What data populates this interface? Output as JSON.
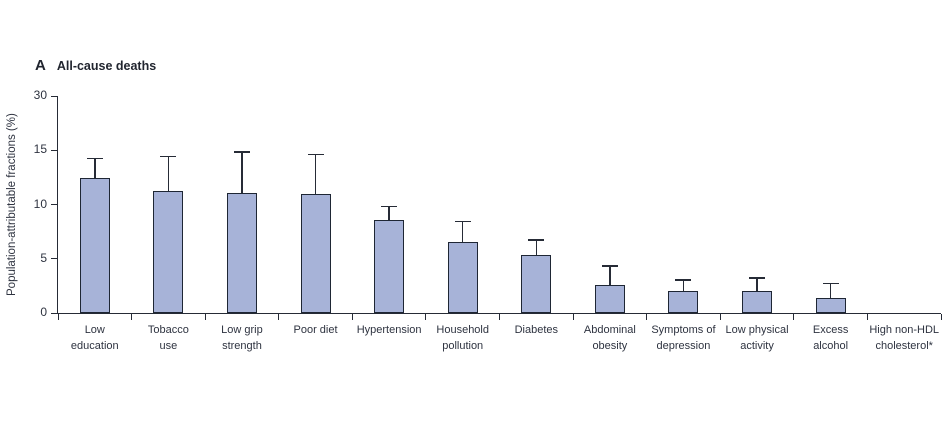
{
  "figure": {
    "panel_label": "A",
    "title": "All-cause deaths",
    "ylabel": "Population-attributable fractions (%)"
  },
  "chart_data": {
    "type": "bar",
    "title": "All-cause deaths",
    "xlabel": "",
    "ylabel": "Population-attributable fractions (%)",
    "yticks": [
      0,
      5,
      10,
      15,
      30
    ],
    "axis_note": "y-axis ticks equally spaced; 15-30 interval compressed",
    "grid": false,
    "legend": false,
    "bar_color": "#a7b3d8",
    "bar_border_color": "#1e2634",
    "error_bar_color": "#262b36",
    "categories": [
      "Low education",
      "Tobacco use",
      "Low grip strength",
      "Poor diet",
      "Hypertension",
      "Household pollution",
      "Diabetes",
      "Abdominal obesity",
      "Symptoms of depression",
      "Low physical activity",
      "Excess alcohol",
      "High non-HDL cholesterol*"
    ],
    "label_lines": [
      [
        "Low",
        "education"
      ],
      [
        "Tobacco",
        "use"
      ],
      [
        "Low grip",
        "strength"
      ],
      [
        "Poor diet"
      ],
      [
        "Hypertension"
      ],
      [
        "Household",
        "pollution"
      ],
      [
        "Diabetes"
      ],
      [
        "Abdominal",
        "obesity"
      ],
      [
        "Symptoms of",
        "depression"
      ],
      [
        "Low physical",
        "activity"
      ],
      [
        "Excess",
        "alcohol"
      ],
      [
        "High non-HDL",
        "cholesterol*"
      ]
    ],
    "values": [
      12.4,
      11.2,
      11.1,
      11.0,
      8.6,
      6.5,
      5.3,
      2.6,
      2.0,
      2.0,
      1.4,
      0
    ],
    "upper_ci": [
      14.2,
      14.4,
      14.8,
      14.6,
      9.8,
      8.4,
      6.7,
      4.3,
      3.0,
      3.2,
      2.7,
      0
    ]
  }
}
